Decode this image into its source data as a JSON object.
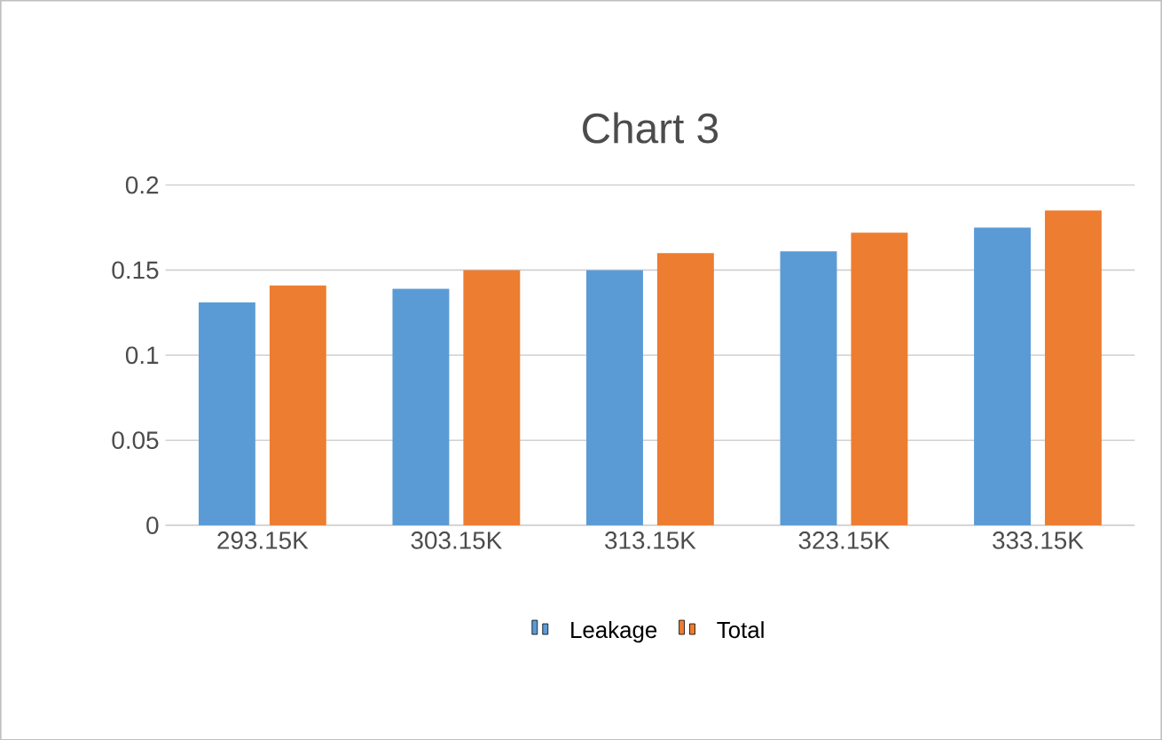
{
  "chart_data": {
    "type": "bar",
    "title": "Chart 3",
    "categories": [
      "293.15K",
      "303.15K",
      "313.15K",
      "323.15K",
      "333.15K"
    ],
    "series": [
      {
        "name": "Leakage",
        "color": "#5b9bd5",
        "values": [
          0.131,
          0.139,
          0.15,
          0.161,
          0.175
        ]
      },
      {
        "name": "Total",
        "color": "#ed7d31",
        "values": [
          0.141,
          0.15,
          0.16,
          0.172,
          0.185
        ]
      }
    ],
    "ylim": [
      0,
      0.2
    ],
    "yticks": [
      0,
      0.05,
      0.1,
      0.15,
      0.2
    ],
    "grid": "y",
    "legend": "bottom"
  }
}
